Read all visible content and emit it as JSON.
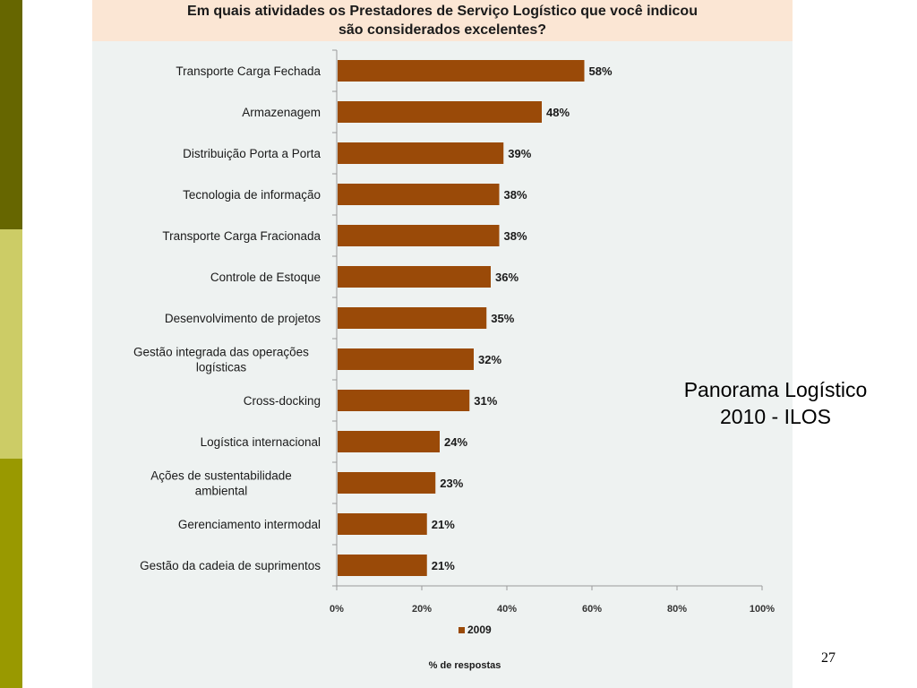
{
  "slide": {
    "caption_line1": "Panorama Logístico",
    "caption_line2": "2010 - ILOS",
    "page_number": "27"
  },
  "colors": {
    "bar": "#9a4a08",
    "panel": "#eef2f1",
    "title_box": "#fbe6d4"
  },
  "chart_data": {
    "type": "bar",
    "orientation": "horizontal",
    "title": "Em quais atividades os Prestadores de Serviço Logístico que você indicou\nsão considerados excelentes?",
    "xlabel": "% de respostas",
    "xlim": [
      0,
      100
    ],
    "x_ticks": [
      "0%",
      "20%",
      "40%",
      "60%",
      "80%",
      "100%"
    ],
    "grid": false,
    "legend": "bottom",
    "categories": [
      "Transporte Carga Fechada",
      "Armazenagem",
      "Distribuição Porta a Porta",
      "Tecnologia de informação",
      "Transporte Carga Fracionada",
      "Controle de Estoque",
      "Desenvolvimento de projetos",
      "Gestão integrada das operações\nlogísticas",
      "Cross-docking",
      "Logística internacional",
      "Ações de sustentabilidade\nambiental",
      "Gerenciamento intermodal",
      "Gestão da cadeia de suprimentos"
    ],
    "series": [
      {
        "name": "2009",
        "values": [
          58,
          48,
          39,
          38,
          38,
          36,
          35,
          32,
          31,
          24,
          23,
          21,
          21
        ],
        "labels": [
          "58%",
          "48%",
          "39%",
          "38%",
          "38%",
          "36%",
          "35%",
          "32%",
          "31%",
          "24%",
          "23%",
          "21%",
          "21%"
        ]
      }
    ]
  }
}
